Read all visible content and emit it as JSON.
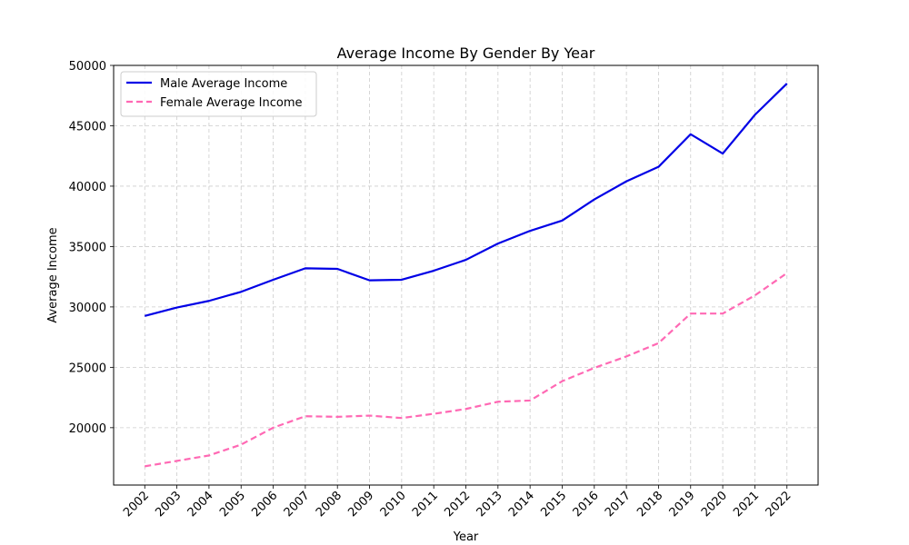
{
  "chart_data": {
    "type": "line",
    "title": "Average Income By Gender By Year",
    "xlabel": "Year",
    "ylabel": "Average Income",
    "x": [
      2002,
      2003,
      2004,
      2005,
      2006,
      2007,
      2008,
      2009,
      2010,
      2011,
      2012,
      2013,
      2014,
      2015,
      2016,
      2017,
      2018,
      2019,
      2020,
      2021,
      2022
    ],
    "ylim": [
      15250,
      50000
    ],
    "yticks": [
      20000,
      25000,
      30000,
      35000,
      40000,
      45000,
      50000
    ],
    "grid": true,
    "legend_position": "top-left",
    "series": [
      {
        "name": "Male Average Income",
        "color": "#0000e6",
        "style": "solid",
        "values": [
          29250,
          29950,
          30500,
          31250,
          32250,
          33200,
          33150,
          32200,
          32250,
          33000,
          33900,
          35250,
          36300,
          37150,
          38900,
          40400,
          41600,
          44300,
          42700,
          45900,
          48500
        ]
      },
      {
        "name": "Female Average Income",
        "color": "#ff69b4",
        "style": "dashed",
        "values": [
          16800,
          17250,
          17700,
          18600,
          20000,
          20950,
          20900,
          21000,
          20800,
          21150,
          21550,
          22150,
          22250,
          23850,
          24950,
          25900,
          27000,
          29450,
          29450,
          30950,
          32800
        ]
      }
    ]
  }
}
